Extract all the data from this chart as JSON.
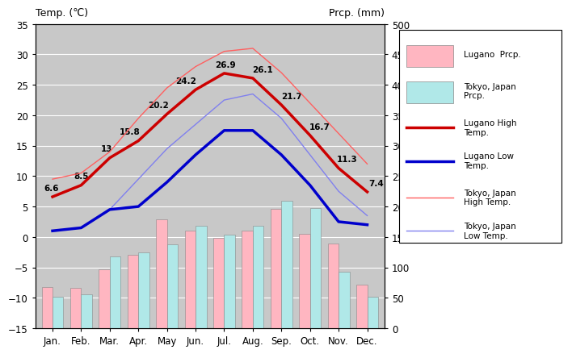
{
  "months": [
    "Jan.",
    "Feb.",
    "Mar.",
    "Apr.",
    "May",
    "Jun.",
    "Jul.",
    "Aug.",
    "Sep.",
    "Oct.",
    "Nov.",
    "Dec."
  ],
  "lugano_high": [
    6.6,
    8.5,
    13.0,
    15.8,
    20.2,
    24.2,
    26.9,
    26.1,
    21.7,
    16.7,
    11.3,
    7.4
  ],
  "lugano_low": [
    1.0,
    1.5,
    4.5,
    5.0,
    9.0,
    13.5,
    17.5,
    17.5,
    13.5,
    8.5,
    2.5,
    2.0
  ],
  "tokyo_high": [
    9.5,
    10.5,
    14.0,
    19.5,
    24.5,
    28.0,
    30.5,
    31.0,
    27.0,
    22.0,
    17.0,
    12.0
  ],
  "tokyo_low": [
    1.0,
    1.5,
    4.5,
    9.5,
    14.5,
    18.5,
    22.5,
    23.5,
    19.5,
    13.5,
    7.5,
    3.5
  ],
  "lugano_prcp_mm": [
    67,
    66,
    97,
    120,
    179,
    161,
    148,
    160,
    196,
    155,
    139,
    72
  ],
  "tokyo_prcp_mm": [
    52,
    56,
    118,
    125,
    138,
    168,
    154,
    168,
    210,
    198,
    93,
    51
  ],
  "lugano_high_labels": [
    "6.6",
    "8.5",
    "13",
    "15.8",
    "20.2",
    "24.2",
    "26.9",
    "26.1",
    "21.7",
    "16.7",
    "11.3",
    "7.4"
  ],
  "temp_ylim": [
    -15,
    35
  ],
  "prcp_ylim": [
    0,
    500
  ],
  "prcp_yticks": [
    0,
    50,
    100,
    150,
    200,
    250,
    300,
    350,
    400,
    450,
    500
  ],
  "temp_yticks": [
    -15,
    -10,
    -5,
    0,
    5,
    10,
    15,
    20,
    25,
    30,
    35
  ],
  "plot_bg_color": "#c8c8c8",
  "lugano_high_color": "#cc0000",
  "lugano_low_color": "#0000cc",
  "tokyo_high_color": "#ff6060",
  "tokyo_low_color": "#8080ee",
  "lugano_prcp_color": "#ffb6c1",
  "tokyo_prcp_color": "#b0e8e8",
  "title_left": "Temp. (℃)",
  "title_right": "Prcp. (mm)"
}
